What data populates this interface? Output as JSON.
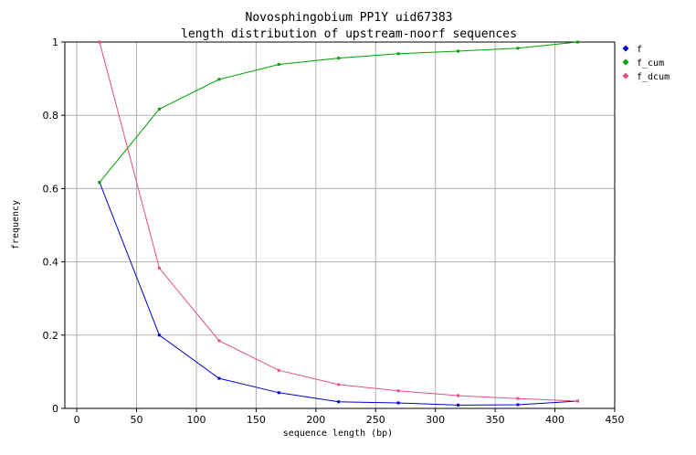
{
  "chart_data": {
    "type": "line",
    "title": "Novosphingobium PP1Y uid67383",
    "subtitle": "length distribution of upstream-noorf sequences",
    "xlabel": "sequence length (bp)",
    "ylabel": "frequency",
    "xlim": [
      -10,
      450
    ],
    "ylim": [
      0,
      1
    ],
    "xticks": [
      0,
      50,
      100,
      150,
      200,
      250,
      300,
      350,
      400,
      450
    ],
    "yticks": [
      0,
      0.2,
      0.4,
      0.6,
      0.8,
      1
    ],
    "grid": true,
    "legend_position": "top-right",
    "x": [
      19,
      69,
      119,
      169,
      219,
      269,
      319,
      369,
      419
    ],
    "series": [
      {
        "name": "f",
        "color": "#0000cc",
        "values": [
          0.617,
          0.2,
          0.082,
          0.043,
          0.018,
          0.015,
          0.009,
          0.01,
          0.02
        ]
      },
      {
        "name": "f_cum",
        "color": "#00a000",
        "values": [
          0.617,
          0.817,
          0.898,
          0.939,
          0.956,
          0.968,
          0.975,
          0.983,
          1.0
        ]
      },
      {
        "name": "f_dcum",
        "color": "#e8507a",
        "values": [
          1.0,
          0.383,
          0.185,
          0.104,
          0.065,
          0.048,
          0.035,
          0.027,
          0.02
        ]
      }
    ]
  }
}
